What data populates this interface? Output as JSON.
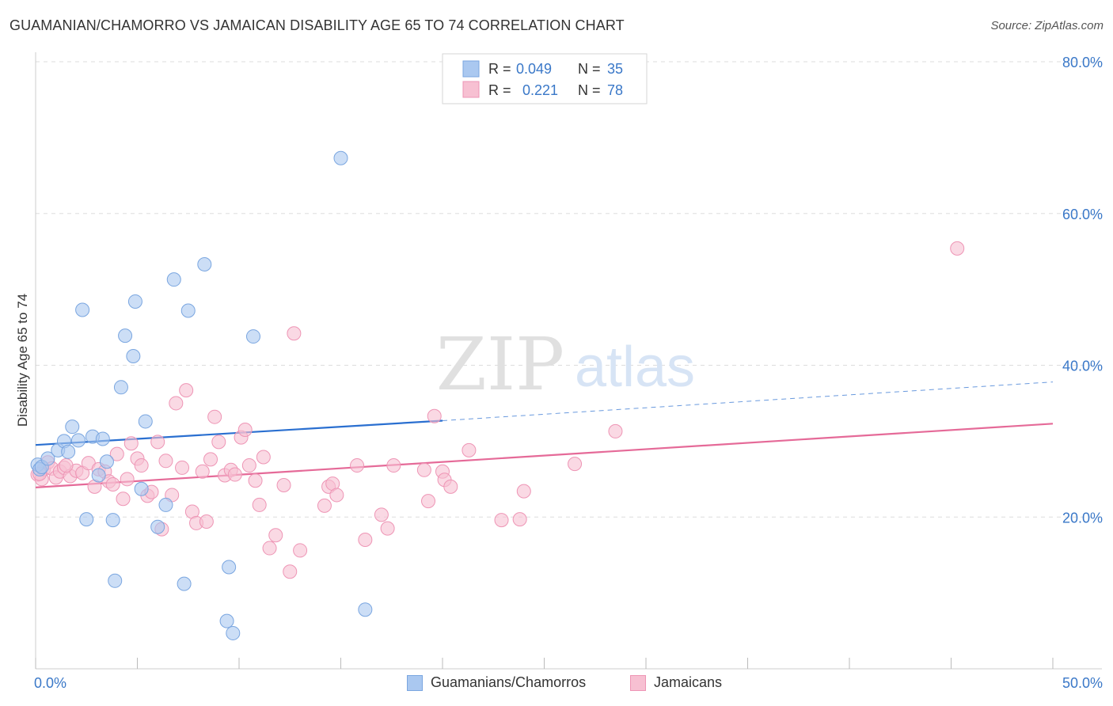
{
  "title": "GUAMANIAN/CHAMORRO VS JAMAICAN DISABILITY AGE 65 TO 74 CORRELATION CHART",
  "source": "Source: ZipAtlas.com",
  "watermark": {
    "part1": "ZIP",
    "part2": "atlas"
  },
  "colors": {
    "blue_fill": "#aac8f0",
    "blue_stroke": "#7aa6e0",
    "blue_line": "#2a6fd0",
    "pink_fill": "#f7c0d2",
    "pink_stroke": "#ee95b5",
    "pink_line": "#e56a98",
    "axis_text": "#3a78c8",
    "grid": "#dddddd"
  },
  "legend_top": {
    "rows": [
      {
        "r_label": "R =",
        "r_value": "0.049",
        "n_label": "N =",
        "n_value": "35"
      },
      {
        "r_label": "R =",
        "r_value": "0.221",
        "n_label": "N =",
        "n_value": "78"
      }
    ]
  },
  "legend_bottom": {
    "series1": "Guamanians/Chamorros",
    "series2": "Jamaicans"
  },
  "chart_data": {
    "type": "scatter",
    "title": "GUAMANIAN/CHAMORRO VS JAMAICAN DISABILITY AGE 65 TO 74 CORRELATION CHART",
    "xlabel": "",
    "ylabel": "Disability Age 65 to 74",
    "xlim": [
      0,
      50
    ],
    "ylim": [
      0,
      80
    ],
    "x_tick_labels": [
      "0.0%",
      "50.0%"
    ],
    "y_ticks": [
      20,
      40,
      60,
      80
    ],
    "y_tick_labels": [
      "20.0%",
      "40.0%",
      "60.0%",
      "80.0%"
    ],
    "grid": true,
    "legend_position": "top-center",
    "series": [
      {
        "name": "Guamanians/Chamorros",
        "color": "#aac8f0",
        "r": 0.049,
        "n": 35,
        "trend": {
          "x": [
            0,
            20
          ],
          "y": [
            29.5,
            32.7
          ],
          "dashed_to": {
            "x": 50,
            "y": 37.8
          }
        },
        "points": [
          [
            0.1,
            26.9
          ],
          [
            0.2,
            26.3
          ],
          [
            0.3,
            26.6
          ],
          [
            0.6,
            27.7
          ],
          [
            1.1,
            28.8
          ],
          [
            1.4,
            30.0
          ],
          [
            1.6,
            28.6
          ],
          [
            1.8,
            31.9
          ],
          [
            2.1,
            30.1
          ],
          [
            2.3,
            47.3
          ],
          [
            2.5,
            19.7
          ],
          [
            2.8,
            30.6
          ],
          [
            3.1,
            25.5
          ],
          [
            3.3,
            30.3
          ],
          [
            3.5,
            27.3
          ],
          [
            3.8,
            19.6
          ],
          [
            3.9,
            11.6
          ],
          [
            4.2,
            37.1
          ],
          [
            4.4,
            43.9
          ],
          [
            4.8,
            41.2
          ],
          [
            4.9,
            48.4
          ],
          [
            5.2,
            23.7
          ],
          [
            5.4,
            32.6
          ],
          [
            6.0,
            18.7
          ],
          [
            6.4,
            21.6
          ],
          [
            6.8,
            51.3
          ],
          [
            7.3,
            11.2
          ],
          [
            7.5,
            47.2
          ],
          [
            8.3,
            53.3
          ],
          [
            9.4,
            6.3
          ],
          [
            9.5,
            13.4
          ],
          [
            9.7,
            4.7
          ],
          [
            10.7,
            43.8
          ],
          [
            15.0,
            67.3
          ],
          [
            16.2,
            7.8
          ]
        ]
      },
      {
        "name": "Jamaicans",
        "color": "#f7c0d2",
        "r": 0.221,
        "n": 78,
        "trend": {
          "x": [
            0,
            50
          ],
          "y": [
            23.9,
            32.3
          ]
        },
        "points": [
          [
            0.1,
            25.6
          ],
          [
            0.3,
            25.0
          ],
          [
            0.4,
            26.3
          ],
          [
            0.6,
            27.2
          ],
          [
            0.8,
            26.4
          ],
          [
            1.0,
            25.2
          ],
          [
            1.2,
            26.0
          ],
          [
            1.4,
            26.5
          ],
          [
            1.7,
            25.4
          ],
          [
            2.0,
            26.1
          ],
          [
            2.3,
            25.8
          ],
          [
            2.6,
            27.1
          ],
          [
            2.9,
            24.0
          ],
          [
            3.1,
            26.3
          ],
          [
            3.4,
            26.0
          ],
          [
            3.6,
            24.7
          ],
          [
            3.8,
            24.3
          ],
          [
            4.0,
            28.3
          ],
          [
            4.3,
            22.4
          ],
          [
            4.5,
            25.0
          ],
          [
            4.7,
            29.7
          ],
          [
            5.0,
            27.7
          ],
          [
            5.2,
            26.8
          ],
          [
            5.5,
            22.8
          ],
          [
            5.7,
            23.3
          ],
          [
            6.0,
            29.9
          ],
          [
            6.2,
            18.4
          ],
          [
            6.4,
            27.4
          ],
          [
            6.7,
            22.9
          ],
          [
            6.9,
            35.0
          ],
          [
            7.2,
            26.5
          ],
          [
            7.4,
            36.7
          ],
          [
            7.7,
            20.7
          ],
          [
            7.9,
            19.2
          ],
          [
            8.2,
            26.0
          ],
          [
            8.4,
            19.4
          ],
          [
            8.6,
            27.6
          ],
          [
            8.8,
            33.2
          ],
          [
            9.0,
            29.9
          ],
          [
            9.3,
            25.5
          ],
          [
            9.6,
            26.2
          ],
          [
            9.8,
            25.6
          ],
          [
            10.1,
            30.5
          ],
          [
            10.3,
            31.5
          ],
          [
            10.5,
            26.8
          ],
          [
            10.8,
            24.8
          ],
          [
            11.0,
            21.6
          ],
          [
            11.2,
            27.9
          ],
          [
            11.5,
            15.9
          ],
          [
            11.8,
            17.6
          ],
          [
            12.2,
            24.2
          ],
          [
            12.5,
            12.8
          ],
          [
            12.7,
            44.2
          ],
          [
            13.0,
            15.6
          ],
          [
            14.2,
            21.5
          ],
          [
            14.4,
            24.0
          ],
          [
            14.6,
            24.4
          ],
          [
            14.8,
            22.9
          ],
          [
            15.8,
            26.8
          ],
          [
            16.2,
            17.0
          ],
          [
            17.0,
            20.3
          ],
          [
            17.3,
            18.5
          ],
          [
            17.6,
            26.8
          ],
          [
            19.1,
            26.2
          ],
          [
            19.3,
            22.1
          ],
          [
            19.6,
            33.3
          ],
          [
            20.0,
            26.0
          ],
          [
            20.1,
            24.9
          ],
          [
            20.4,
            24.0
          ],
          [
            21.3,
            28.8
          ],
          [
            22.9,
            19.6
          ],
          [
            23.8,
            19.7
          ],
          [
            24.0,
            23.4
          ],
          [
            26.5,
            27.0
          ],
          [
            28.5,
            31.3
          ],
          [
            45.3,
            55.4
          ],
          [
            0.2,
            25.7
          ],
          [
            1.5,
            26.8
          ]
        ]
      }
    ]
  }
}
